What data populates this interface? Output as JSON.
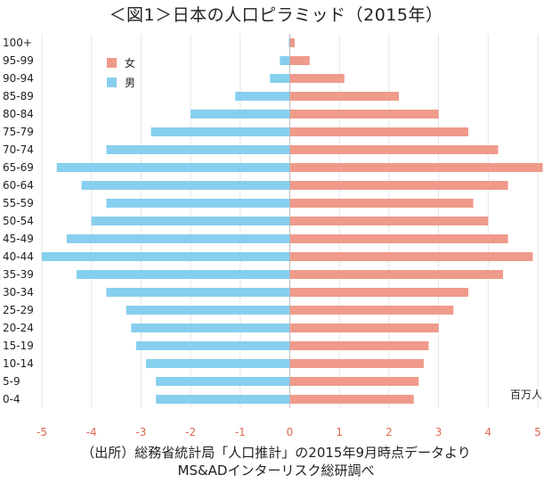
{
  "title": "＜図1＞日本の人口ピラミッド（2015年）",
  "source": {
    "line1": "（出所）総務省統計局「人口推計」の2015年9月時点データより",
    "line2": "MS&ADインターリスク総研調べ"
  },
  "chart_data": {
    "type": "bar",
    "orientation": "horizontal",
    "categories": [
      "100+",
      "95-99",
      "90-94",
      "85-89",
      "80-84",
      "75-79",
      "70-74",
      "65-69",
      "60-64",
      "55-59",
      "50-54",
      "45-49",
      "40-44",
      "35-39",
      "30-34",
      "25-29",
      "20-24",
      "15-19",
      "10-14",
      "5-9",
      "0-4"
    ],
    "series": [
      {
        "name": "女",
        "color": "#ef9a8a",
        "values": [
          0.1,
          0.4,
          1.1,
          2.2,
          3.0,
          3.6,
          4.2,
          5.1,
          4.4,
          3.7,
          4.0,
          4.4,
          4.9,
          4.3,
          3.6,
          3.3,
          3.0,
          2.8,
          2.7,
          2.6,
          2.5
        ]
      },
      {
        "name": "男",
        "color": "#87cfee",
        "values": [
          -0.02,
          -0.2,
          -0.4,
          -1.1,
          -2.0,
          -2.8,
          -3.7,
          -4.7,
          -4.2,
          -3.7,
          -4.0,
          -4.5,
          -5.0,
          -4.3,
          -3.7,
          -3.3,
          -3.2,
          -3.1,
          -2.9,
          -2.7,
          -2.7
        ]
      }
    ],
    "xlim": [
      -5,
      5
    ],
    "xticks": [
      "-5",
      "-4",
      "-3",
      "-2",
      "-1",
      "0",
      "1",
      "2",
      "3",
      "4",
      "5"
    ],
    "xtick_color": "#e06650",
    "unit_label": "百万人",
    "legend_placement": "top-left",
    "grid": "vertical"
  }
}
